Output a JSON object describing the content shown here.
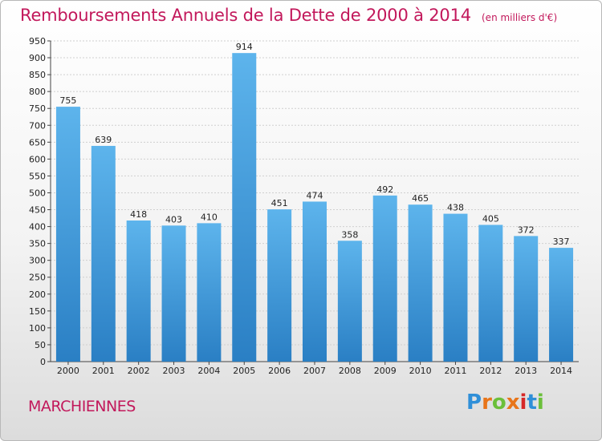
{
  "colors": {
    "accent": "#c2185b",
    "bar_top": "#5db4ec",
    "bar_bottom": "#2a7fc4"
  },
  "chart_data": {
    "type": "bar",
    "title": "Remboursements Annuels de la Dette de 2000 à 2014",
    "unit": "(en milliers d'€)",
    "categories": [
      "2000",
      "2001",
      "2002",
      "2003",
      "2004",
      "2005",
      "2006",
      "2007",
      "2008",
      "2009",
      "2010",
      "2011",
      "2012",
      "2013",
      "2014"
    ],
    "values": [
      755,
      639,
      418,
      403,
      410,
      914,
      451,
      474,
      358,
      492,
      465,
      438,
      405,
      372,
      337
    ],
    "ylim": [
      0,
      950
    ],
    "ytick_step": 50,
    "grid": true
  },
  "footer": {
    "commune": "MARCHIENNES",
    "logo": "Proxiti",
    "logo_colors": [
      "#2f8fd8",
      "#e8751a",
      "#6bbf3a",
      "#e8751a",
      "#d62828",
      "#2f8fd8",
      "#6bbf3a"
    ]
  }
}
